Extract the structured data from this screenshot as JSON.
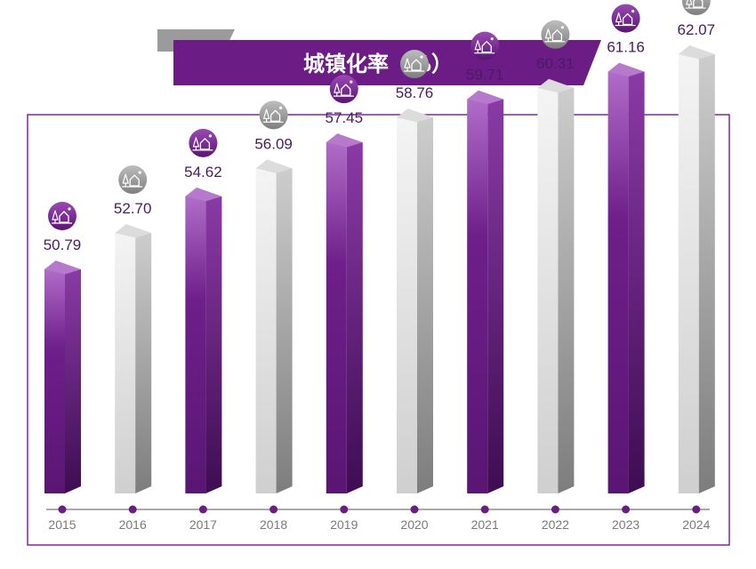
{
  "chart_data": {
    "type": "bar",
    "title": "城镇化率（%）",
    "categories": [
      "2015",
      "2016",
      "2017",
      "2018",
      "2019",
      "2020",
      "2021",
      "2022",
      "2023",
      "2024"
    ],
    "values": [
      50.79,
      52.7,
      54.62,
      56.09,
      57.45,
      58.76,
      59.71,
      60.31,
      61.16,
      62.07
    ],
    "value_labels": [
      "50.79",
      "52.70",
      "54.62",
      "56.09",
      "57.45",
      "58.76",
      "59.71",
      "60.31",
      "61.16",
      "62.07"
    ],
    "xlabel": "",
    "ylabel": "",
    "ylim": [
      46,
      64
    ],
    "grid": false,
    "legend": "none",
    "bar_style": "3d-prism",
    "bar_color_pattern": [
      "purple",
      "gray"
    ],
    "marker_icon": "town-icon"
  },
  "colors": {
    "purple": "#6b1f86",
    "purple_light": "#a66fbf",
    "gray": "#bcbcbc",
    "gray_light": "#e6e6e6",
    "frame": "#7a2a92",
    "title_banner": "#6b1d85",
    "title_tab": "#9b9b9b"
  }
}
